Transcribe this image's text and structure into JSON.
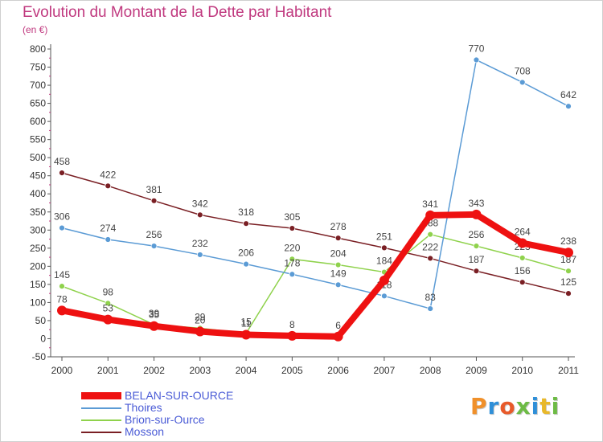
{
  "title": "Evolution du Montant de la Dette par Habitant",
  "unit": "(en €)",
  "logo": {
    "text": "Proxiti",
    "colors": [
      "#f0902a",
      "#2f8fd8",
      "#e85a2a",
      "#6dbb45",
      "#2f8fd8",
      "#e8b82a",
      "#6dbb45"
    ]
  },
  "chart_data": {
    "type": "line",
    "x": [
      "2000",
      "2001",
      "2002",
      "2003",
      "2004",
      "2005",
      "2006",
      "2007",
      "2008",
      "2009",
      "2010",
      "2011"
    ],
    "ylim": [
      -50,
      800
    ],
    "yticks": [
      -50,
      0,
      50,
      100,
      150,
      200,
      250,
      300,
      350,
      400,
      450,
      500,
      550,
      600,
      650,
      700,
      750,
      800
    ],
    "grid": false,
    "legend_position": "bottom-left",
    "series": [
      {
        "name": "Mosson",
        "color": "#7a1f24",
        "values": [
          458,
          422,
          381,
          342,
          318,
          305,
          278,
          251,
          222,
          187,
          156,
          125
        ],
        "labels": [
          "458",
          "422",
          "381",
          "342",
          "318",
          "305",
          "278",
          "251",
          "222",
          "187",
          "156",
          "125"
        ]
      },
      {
        "name": "Brion-sur-Ource",
        "color": "#8fd24c",
        "values": [
          145,
          98,
          39,
          29,
          15,
          220,
          204,
          184,
          288,
          256,
          223,
          187
        ],
        "labels": [
          "145",
          "98",
          "39",
          "29",
          "15",
          "220",
          "204",
          "184",
          "288",
          "256",
          "223",
          "187"
        ]
      },
      {
        "name": "Thoires",
        "color": "#5b9bd5",
        "values": [
          306,
          274,
          256,
          232,
          206,
          178,
          149,
          118,
          83,
          770,
          708,
          642
        ],
        "labels": [
          "306",
          "274",
          "256",
          "232",
          "206",
          "178",
          "149",
          "118",
          "83",
          "770",
          "708",
          "642"
        ]
      },
      {
        "name": "BELAN-SUR-OURCE",
        "color": "#ee1111",
        "values": [
          78,
          53,
          35,
          20,
          11,
          8,
          6,
          161,
          341,
          343,
          264,
          238
        ],
        "labels": [
          "78",
          "53",
          "35",
          "20",
          "11",
          "8",
          "6",
          "",
          "341",
          "343",
          "264",
          "238"
        ]
      }
    ],
    "legend": [
      "BELAN-SUR-OURCE",
      "Thoires",
      "Brion-sur-Ource",
      "Mosson"
    ]
  }
}
